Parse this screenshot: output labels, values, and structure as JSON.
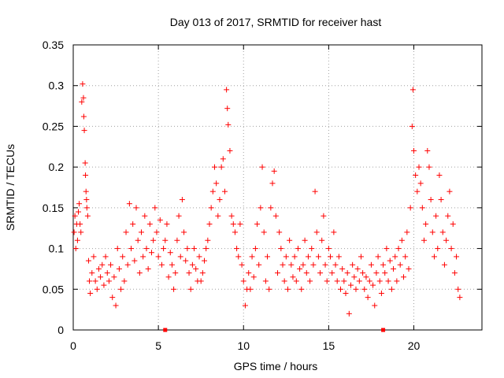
{
  "chart_data": {
    "type": "scatter",
    "title": "Day 013 of 2017, SRMTID for receiver hast",
    "xlabel": "GPS time / hours",
    "ylabel": "SRMTID / TECUs",
    "xlim": [
      0,
      24
    ],
    "ylim": [
      0,
      0.35
    ],
    "x_ticks": [
      0,
      5,
      10,
      15,
      20
    ],
    "y_ticks": [
      0,
      0.05,
      0.1,
      0.15,
      0.2,
      0.25,
      0.3,
      0.35
    ],
    "x_tick_labels": [
      "0",
      "5",
      "10",
      "15",
      "20"
    ],
    "y_tick_labels": [
      "0",
      "0.05",
      "0.1",
      "0.15",
      "0.2",
      "0.25",
      "0.3",
      "0.35"
    ],
    "grid": true,
    "marker": "+",
    "color": "#ff0000",
    "series": [
      {
        "points": [
          [
            0.05,
            0.12
          ],
          [
            0.1,
            0.14
          ],
          [
            0.15,
            0.1
          ],
          [
            0.2,
            0.13
          ],
          [
            0.25,
            0.11
          ],
          [
            0.3,
            0.145
          ],
          [
            0.35,
            0.155
          ],
          [
            0.4,
            0.13
          ],
          [
            0.45,
            0.12
          ],
          [
            0.5,
            0.28
          ],
          [
            0.55,
            0.302
          ],
          [
            0.6,
            0.285
          ],
          [
            0.62,
            0.262
          ],
          [
            0.65,
            0.245
          ],
          [
            0.7,
            0.205
          ],
          [
            0.72,
            0.19
          ],
          [
            0.75,
            0.17
          ],
          [
            0.78,
            0.16
          ],
          [
            0.8,
            0.15
          ],
          [
            0.85,
            0.14
          ],
          [
            0.9,
            0.085
          ],
          [
            0.95,
            0.06
          ],
          [
            1.0,
            0.045
          ],
          [
            1.1,
            0.07
          ],
          [
            1.2,
            0.09
          ],
          [
            1.3,
            0.06
          ],
          [
            1.4,
            0.05
          ],
          [
            1.5,
            0.075
          ],
          [
            1.6,
            0.065
          ],
          [
            1.7,
            0.08
          ],
          [
            1.8,
            0.055
          ],
          [
            1.9,
            0.09
          ],
          [
            2.0,
            0.07
          ],
          [
            2.1,
            0.06
          ],
          [
            2.2,
            0.08
          ],
          [
            2.3,
            0.04
          ],
          [
            2.4,
            0.065
          ],
          [
            2.5,
            0.03
          ],
          [
            2.6,
            0.1
          ],
          [
            2.7,
            0.075
          ],
          [
            2.8,
            0.05
          ],
          [
            2.9,
            0.09
          ],
          [
            3.0,
            0.06
          ],
          [
            3.1,
            0.12
          ],
          [
            3.2,
            0.08
          ],
          [
            3.3,
            0.155
          ],
          [
            3.4,
            0.1
          ],
          [
            3.5,
            0.13
          ],
          [
            3.6,
            0.085
          ],
          [
            3.7,
            0.15
          ],
          [
            3.8,
            0.11
          ],
          [
            3.9,
            0.07
          ],
          [
            4.0,
            0.12
          ],
          [
            4.1,
            0.09
          ],
          [
            4.2,
            0.14
          ],
          [
            4.3,
            0.1
          ],
          [
            4.4,
            0.075
          ],
          [
            4.5,
            0.13
          ],
          [
            4.6,
            0.095
          ],
          [
            4.7,
            0.11
          ],
          [
            4.8,
            0.15
          ],
          [
            4.9,
            0.12
          ],
          [
            5.0,
            0.09
          ],
          [
            5.1,
            0.135
          ],
          [
            5.2,
            0.08
          ],
          [
            5.3,
            0.1
          ],
          [
            5.4,
            0.11
          ],
          [
            5.5,
            0.13
          ],
          [
            5.6,
            0.065
          ],
          [
            5.7,
            0.095
          ],
          [
            5.8,
            0.08
          ],
          [
            5.9,
            0.05
          ],
          [
            6.0,
            0.07
          ],
          [
            6.1,
            0.11
          ],
          [
            6.2,
            0.14
          ],
          [
            6.3,
            0.09
          ],
          [
            6.4,
            0.16
          ],
          [
            6.5,
            0.12
          ],
          [
            6.6,
            0.085
          ],
          [
            6.7,
            0.1
          ],
          [
            6.8,
            0.07
          ],
          [
            6.9,
            0.05
          ],
          [
            7.0,
            0.08
          ],
          [
            7.1,
            0.1
          ],
          [
            7.2,
            0.075
          ],
          [
            7.3,
            0.06
          ],
          [
            7.4,
            0.09
          ],
          [
            7.5,
            0.06
          ],
          [
            7.6,
            0.07
          ],
          [
            7.7,
            0.085
          ],
          [
            7.8,
            0.1
          ],
          [
            7.9,
            0.11
          ],
          [
            8.0,
            0.13
          ],
          [
            8.1,
            0.15
          ],
          [
            8.2,
            0.17
          ],
          [
            8.3,
            0.2
          ],
          [
            8.4,
            0.18
          ],
          [
            8.5,
            0.14
          ],
          [
            8.6,
            0.16
          ],
          [
            8.7,
            0.2
          ],
          [
            8.8,
            0.21
          ],
          [
            8.9,
            0.17
          ],
          [
            9.0,
            0.295
          ],
          [
            9.05,
            0.272
          ],
          [
            9.1,
            0.252
          ],
          [
            9.2,
            0.22
          ],
          [
            9.3,
            0.14
          ],
          [
            9.4,
            0.13
          ],
          [
            9.5,
            0.12
          ],
          [
            9.6,
            0.1
          ],
          [
            9.7,
            0.09
          ],
          [
            9.8,
            0.13
          ],
          [
            9.9,
            0.08
          ],
          [
            10.0,
            0.06
          ],
          [
            10.1,
            0.03
          ],
          [
            10.2,
            0.05
          ],
          [
            10.3,
            0.07
          ],
          [
            10.4,
            0.05
          ],
          [
            10.5,
            0.09
          ],
          [
            10.6,
            0.065
          ],
          [
            10.7,
            0.1
          ],
          [
            10.8,
            0.13
          ],
          [
            10.9,
            0.08
          ],
          [
            11.0,
            0.15
          ],
          [
            11.1,
            0.2
          ],
          [
            11.2,
            0.12
          ],
          [
            11.3,
            0.06
          ],
          [
            11.4,
            0.09
          ],
          [
            11.5,
            0.05
          ],
          [
            11.6,
            0.15
          ],
          [
            11.7,
            0.18
          ],
          [
            11.8,
            0.195
          ],
          [
            11.9,
            0.14
          ],
          [
            12.0,
            0.07
          ],
          [
            12.1,
            0.12
          ],
          [
            12.2,
            0.1
          ],
          [
            12.3,
            0.08
          ],
          [
            12.4,
            0.06
          ],
          [
            12.5,
            0.09
          ],
          [
            12.6,
            0.05
          ],
          [
            12.7,
            0.11
          ],
          [
            12.8,
            0.08
          ],
          [
            12.9,
            0.065
          ],
          [
            13.0,
            0.09
          ],
          [
            13.1,
            0.06
          ],
          [
            13.2,
            0.1
          ],
          [
            13.3,
            0.075
          ],
          [
            13.4,
            0.05
          ],
          [
            13.5,
            0.08
          ],
          [
            13.6,
            0.11
          ],
          [
            13.7,
            0.07
          ],
          [
            13.8,
            0.09
          ],
          [
            13.9,
            0.06
          ],
          [
            14.0,
            0.1
          ],
          [
            14.1,
            0.08
          ],
          [
            14.2,
            0.17
          ],
          [
            14.3,
            0.12
          ],
          [
            14.4,
            0.09
          ],
          [
            14.5,
            0.07
          ],
          [
            14.6,
            0.11
          ],
          [
            14.7,
            0.14
          ],
          [
            14.8,
            0.08
          ],
          [
            14.9,
            0.06
          ],
          [
            15.0,
            0.1
          ],
          [
            15.1,
            0.09
          ],
          [
            15.2,
            0.07
          ],
          [
            15.3,
            0.12
          ],
          [
            15.4,
            0.08
          ],
          [
            15.5,
            0.06
          ],
          [
            15.6,
            0.09
          ],
          [
            15.7,
            0.05
          ],
          [
            15.8,
            0.075
          ],
          [
            15.9,
            0.06
          ],
          [
            16.0,
            0.045
          ],
          [
            16.1,
            0.07
          ],
          [
            16.2,
            0.02
          ],
          [
            16.3,
            0.055
          ],
          [
            16.4,
            0.08
          ],
          [
            16.5,
            0.065
          ],
          [
            16.6,
            0.05
          ],
          [
            16.7,
            0.075
          ],
          [
            16.8,
            0.06
          ],
          [
            16.9,
            0.09
          ],
          [
            17.0,
            0.07
          ],
          [
            17.1,
            0.05
          ],
          [
            17.2,
            0.065
          ],
          [
            17.3,
            0.04
          ],
          [
            17.4,
            0.06
          ],
          [
            17.5,
            0.08
          ],
          [
            17.6,
            0.055
          ],
          [
            17.7,
            0.03
          ],
          [
            17.8,
            0.07
          ],
          [
            17.9,
            0.09
          ],
          [
            18.0,
            0.06
          ],
          [
            18.1,
            0.045
          ],
          [
            18.2,
            0.08
          ],
          [
            18.3,
            0.07
          ],
          [
            18.4,
            0.1
          ],
          [
            18.5,
            0.06
          ],
          [
            18.6,
            0.085
          ],
          [
            18.7,
            0.05
          ],
          [
            18.8,
            0.075
          ],
          [
            18.9,
            0.09
          ],
          [
            19.0,
            0.06
          ],
          [
            19.1,
            0.1
          ],
          [
            19.2,
            0.08
          ],
          [
            19.3,
            0.11
          ],
          [
            19.4,
            0.065
          ],
          [
            19.5,
            0.09
          ],
          [
            19.6,
            0.12
          ],
          [
            19.7,
            0.075
          ],
          [
            19.8,
            0.15
          ],
          [
            19.9,
            0.25
          ],
          [
            19.95,
            0.295
          ],
          [
            20.0,
            0.22
          ],
          [
            20.1,
            0.19
          ],
          [
            20.2,
            0.17
          ],
          [
            20.3,
            0.2
          ],
          [
            20.4,
            0.18
          ],
          [
            20.5,
            0.15
          ],
          [
            20.6,
            0.11
          ],
          [
            20.7,
            0.13
          ],
          [
            20.8,
            0.22
          ],
          [
            20.9,
            0.2
          ],
          [
            21.0,
            0.16
          ],
          [
            21.1,
            0.12
          ],
          [
            21.2,
            0.09
          ],
          [
            21.3,
            0.14
          ],
          [
            21.4,
            0.1
          ],
          [
            21.5,
            0.19
          ],
          [
            21.6,
            0.16
          ],
          [
            21.7,
            0.12
          ],
          [
            21.8,
            0.08
          ],
          [
            21.9,
            0.11
          ],
          [
            22.0,
            0.14
          ],
          [
            22.1,
            0.17
          ],
          [
            22.2,
            0.1
          ],
          [
            22.3,
            0.13
          ],
          [
            22.4,
            0.07
          ],
          [
            22.5,
            0.09
          ],
          [
            22.6,
            0.05
          ],
          [
            22.7,
            0.04
          ]
        ]
      }
    ],
    "zero_markers": [
      5.4,
      18.2
    ]
  }
}
